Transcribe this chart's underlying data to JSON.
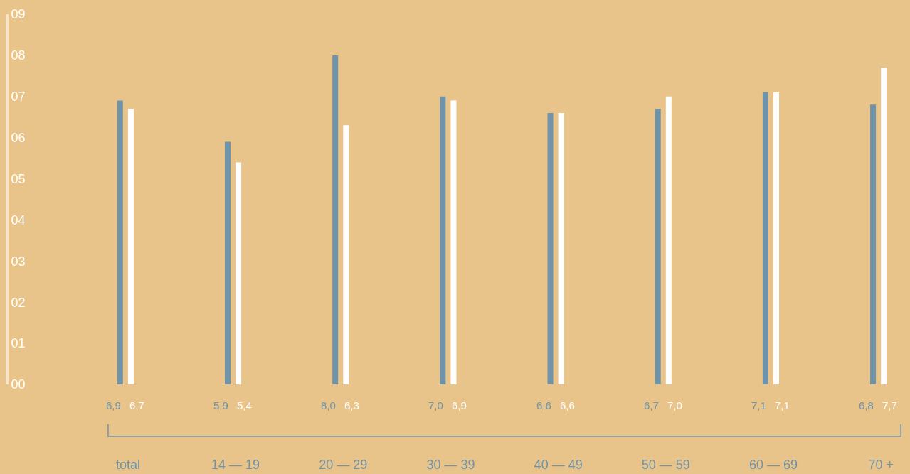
{
  "chart_data": {
    "type": "bar",
    "categories": [
      "total",
      "14 — 19",
      "20 — 29",
      "30 — 39",
      "40 — 49",
      "50 — 59",
      "60 — 69",
      "70 +"
    ],
    "series": [
      {
        "color": "#6f93a8",
        "values": [
          6.9,
          5.9,
          8.0,
          7.0,
          6.6,
          6.7,
          7.1,
          6.8
        ],
        "value_labels": [
          "6,9",
          "5,9",
          "8,0",
          "7,0",
          "6,6",
          "6,7",
          "7,1",
          "6,8"
        ]
      },
      {
        "color": "#ffffff",
        "values": [
          6.7,
          5.4,
          6.3,
          6.9,
          6.6,
          7.0,
          7.1,
          7.7
        ],
        "value_labels": [
          "6,7",
          "5,4",
          "6,3",
          "6,9",
          "6,6",
          "7,0",
          "7,1",
          "7,7"
        ]
      }
    ],
    "ylim": [
      0,
      9
    ],
    "yticks": [
      {
        "value": 0,
        "label": "00"
      },
      {
        "value": 1,
        "label": "01"
      },
      {
        "value": 2,
        "label": "02"
      },
      {
        "value": 3,
        "label": "03"
      },
      {
        "value": 4,
        "label": "04"
      },
      {
        "value": 5,
        "label": "05"
      },
      {
        "value": 6,
        "label": "06"
      },
      {
        "value": 7,
        "label": "07"
      },
      {
        "value": 8,
        "label": "08"
      },
      {
        "value": 9,
        "label": "09"
      }
    ],
    "grid": false
  }
}
